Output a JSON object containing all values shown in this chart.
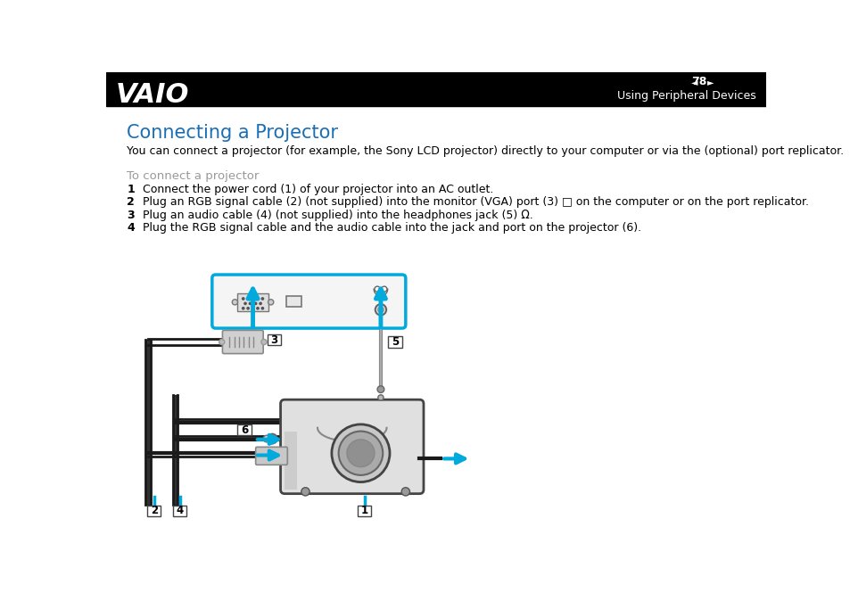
{
  "header_bg": "#000000",
  "header_text_color": "#ffffff",
  "header_page": "78",
  "header_section": "Using Peripheral Devices",
  "title": "Connecting a Projector",
  "title_color": "#1a6eb5",
  "body_color": "#000000",
  "para1": "You can connect a projector (for example, the Sony LCD projector) directly to your computer or via the (optional) port replicator.",
  "subheading": "To connect a projector",
  "subheading_color": "#999999",
  "step1": "Connect the power cord (1) of your projector into an AC outlet.",
  "step2": "Plug an RGB signal cable (2) (not supplied) into the monitor (VGA) port (3) □ on the computer or on the port replicator.",
  "step3": "Plug an audio cable (4) (not supplied) into the headphones jack (5) Ω.",
  "step4": "Plug the RGB signal cable and the audio cable into the jack and port on the projector (6).",
  "arrow_color": "#00aadd",
  "cable_color": "#1a1a1a",
  "box_border_color": "#00aadd",
  "label_border_color": "#444444",
  "bg_color": "#ffffff"
}
